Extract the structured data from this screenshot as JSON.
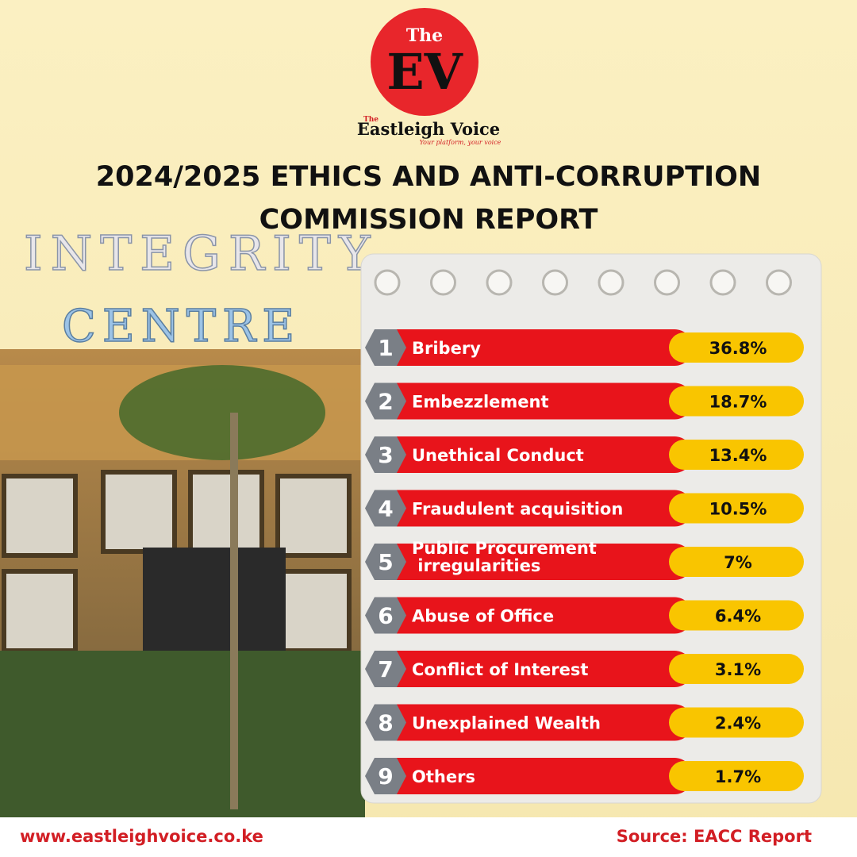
{
  "header": {
    "logo_the": "The",
    "logo_mark": "EV",
    "brand_the": "The",
    "brand": "Eastleigh Voice",
    "tagline": "Your platform, your voice",
    "title_line1": "2024/2025 ETHICS AND ANTI-CORRUPTION",
    "title_line2": "COMMISSION REPORT"
  },
  "sign": {
    "line1": "INTEGRITY",
    "line2": "CENTRE"
  },
  "items": [
    {
      "rank": "1",
      "label": "Bribery",
      "value": "36.8%"
    },
    {
      "rank": "2",
      "label": "Embezzlement",
      "value": "18.7%"
    },
    {
      "rank": "3",
      "label": "Unethical Conduct",
      "value": "13.4%"
    },
    {
      "rank": "4",
      "label": "Fraudulent acquisition",
      "value": "10.5%"
    },
    {
      "rank": "5",
      "label": "Public Procurement irregularities",
      "value": "7%"
    },
    {
      "rank": "6",
      "label": "Abuse of Office",
      "value": "6.4%"
    },
    {
      "rank": "7",
      "label": "Conflict of Interest",
      "value": "3.1%"
    },
    {
      "rank": "8",
      "label": "Unexplained Wealth",
      "value": "2.4%"
    },
    {
      "rank": "9",
      "label": "Others",
      "value": "1.7%"
    }
  ],
  "footer": {
    "website": "www.eastleighvoice.co.ke",
    "source": "Source: EACC Report"
  }
}
